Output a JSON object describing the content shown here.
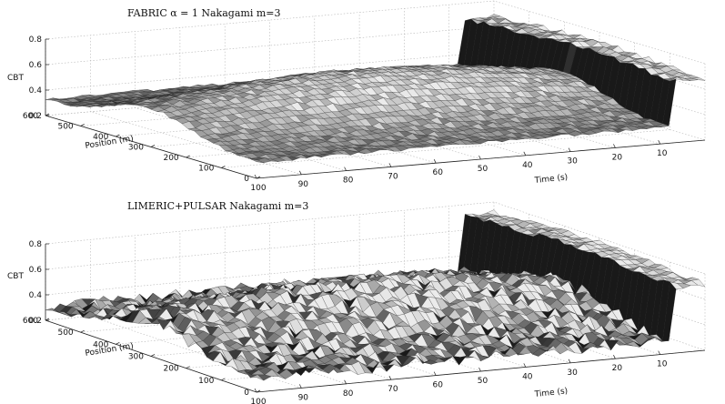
{
  "chart_data": [
    {
      "type": "surface",
      "title": "FABRIC α = 1 Nakagami m=3",
      "xlabel": "Time (s)",
      "ylabel": "Position (m)",
      "zlabel": "CBT",
      "xticks": [
        "10",
        "20",
        "30",
        "40",
        "50",
        "60",
        "70",
        "80",
        "90",
        "100"
      ],
      "yticks": [
        "0",
        "100",
        "200",
        "300",
        "400",
        "500",
        "600"
      ],
      "zticks": [
        "0.2",
        "0.4",
        "0.6",
        "0.8"
      ],
      "xlim": [
        0,
        100
      ],
      "ylim": [
        0,
        600
      ],
      "zlim": [
        0.2,
        0.8
      ],
      "grid": true,
      "colormap": "gray",
      "features": {
        "base_level": 0.32,
        "position_peak_near_m": 300,
        "time_peak_near_s": 50,
        "peak_cbt": 0.65,
        "edge_spike_cbt": 0.73,
        "noise": 0.012
      }
    },
    {
      "type": "surface",
      "title": "LIMERIC+PULSAR Nakagami m=3",
      "xlabel": "Time (s)",
      "ylabel": "Position (m)",
      "zlabel": "CBT",
      "xticks": [
        "10",
        "20",
        "30",
        "40",
        "50",
        "60",
        "70",
        "80",
        "90",
        "100"
      ],
      "yticks": [
        "0",
        "100",
        "200",
        "300",
        "400",
        "500",
        "600"
      ],
      "zticks": [
        "0.2",
        "0.4",
        "0.6",
        "0.8"
      ],
      "xlim": [
        0,
        100
      ],
      "ylim": [
        0,
        600
      ],
      "zlim": [
        0.2,
        0.8
      ],
      "grid": true,
      "colormap": "gray",
      "features": {
        "base_level": 0.3,
        "position_peak_near_m": 300,
        "time_peak_near_s": 55,
        "peak_cbt": 0.62,
        "edge_spike_cbt": 0.77,
        "noise": 0.045
      }
    }
  ]
}
